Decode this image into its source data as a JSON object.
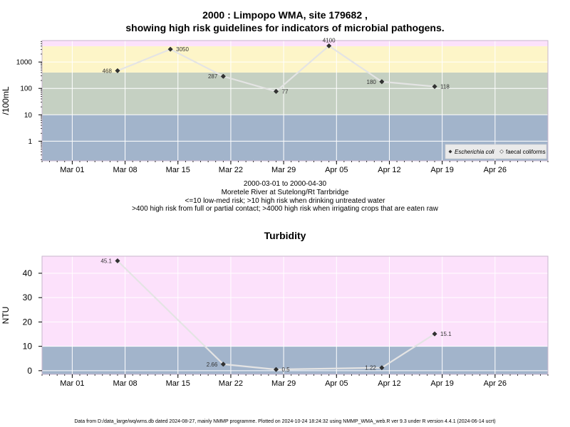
{
  "title_line1": "2000 : Limpopo WMA, site 179682 ,",
  "title_line2": "showing high risk guidelines for indicators of microbial pathogens.",
  "caption_lines": [
    "2000-03-01 to 2000-04-30",
    "Moretele River at Sutelong/Rt Tarrbridge",
    "<=10 low-med risk; >10 high risk when drinking untreated water",
    ">400 high risk from full or partial contact; >4000 high risk when irrigating crops that are eaten raw"
  ],
  "footer": "Data from D:/data_large/wq/wms.db dated 2024-08-27, mainly NMMP programme. Plotted on 2024-10-24 18:24:32 using NMMP_WMA_web.R ver 9.3 under R version 4.4.1 (2024-06-14 ucrt)",
  "colors": {
    "band_blue": "#a2b4cb",
    "band_grey": "#c5d0c2",
    "band_yellow": "#fdf5c8",
    "band_pink": "#fce1fb",
    "line": "#e4e4e4",
    "grid": "#ffffff"
  },
  "chart_data": [
    {
      "type": "line",
      "title": "",
      "ylabel": "/100mL",
      "xlabel": "",
      "yscale": "log",
      "ylim": [
        0.18,
        6500
      ],
      "yticks": [
        1,
        10,
        100,
        1000
      ],
      "ytick_labels": [
        "1",
        "10",
        "100",
        "1000"
      ],
      "xlim": [
        "2000-02-26",
        "2000-05-03"
      ],
      "xticks": [
        "2000-03-01",
        "2000-03-08",
        "2000-03-15",
        "2000-03-22",
        "2000-03-29",
        "2000-04-05",
        "2000-04-12",
        "2000-04-19",
        "2000-04-26"
      ],
      "xtick_labels": [
        "Mar 01",
        "Mar 08",
        "Mar 15",
        "Mar 22",
        "Mar 29",
        "Apr 05",
        "Apr 12",
        "Apr 19",
        "Apr 26"
      ],
      "bands": [
        {
          "from": 0.18,
          "to": 10,
          "color": "#a2b4cb"
        },
        {
          "from": 10,
          "to": 400,
          "color": "#c5d0c2"
        },
        {
          "from": 400,
          "to": 4000,
          "color": "#fdf5c8"
        },
        {
          "from": 4000,
          "to": 6500,
          "color": "#fce1fb"
        }
      ],
      "legend": {
        "position": "bottom-right",
        "entries": [
          "Escherichia coli",
          "faecal coliforms"
        ]
      },
      "series": [
        {
          "name": "Escherichia coli",
          "x": [
            "2000-03-07",
            "2000-03-14",
            "2000-03-21",
            "2000-03-28",
            "2000-04-04",
            "2000-04-11",
            "2000-04-18"
          ],
          "y": [
            468,
            3050,
            287,
            77,
            4100,
            180,
            118
          ],
          "labels": [
            "468",
            "3050",
            "287",
            "77",
            "4100",
            "180",
            "118"
          ],
          "label_side": [
            "left",
            "right",
            "left",
            "right",
            "top",
            "left",
            "right"
          ]
        }
      ]
    },
    {
      "type": "line",
      "title": "Turbidity",
      "ylabel": "NTU",
      "xlabel": "",
      "yscale": "linear",
      "ylim": [
        -1.5,
        47
      ],
      "yticks": [
        0,
        10,
        20,
        30,
        40
      ],
      "ytick_labels": [
        "0",
        "10",
        "20",
        "30",
        "40"
      ],
      "xlim": [
        "2000-02-26",
        "2000-05-03"
      ],
      "xticks": [
        "2000-03-01",
        "2000-03-08",
        "2000-03-15",
        "2000-03-22",
        "2000-03-29",
        "2000-04-05",
        "2000-04-12",
        "2000-04-19",
        "2000-04-26"
      ],
      "xtick_labels": [
        "Mar 01",
        "Mar 08",
        "Mar 15",
        "Mar 22",
        "Mar 29",
        "Apr 05",
        "Apr 12",
        "Apr 19",
        "Apr 26"
      ],
      "bands": [
        {
          "from": -1.5,
          "to": 10,
          "color": "#a2b4cb"
        },
        {
          "from": 10,
          "to": 47,
          "color": "#fce1fb"
        }
      ],
      "series": [
        {
          "x": [
            "2000-03-07",
            "2000-03-21",
            "2000-03-28",
            "2000-04-11",
            "2000-04-18"
          ],
          "y": [
            45.1,
            2.66,
            0.5,
            1.22,
            15.1
          ],
          "labels": [
            "45.1",
            "2.66",
            "0.5",
            "1.22",
            "15.1"
          ],
          "label_side": [
            "left",
            "left",
            "right",
            "left",
            "right"
          ]
        }
      ]
    }
  ]
}
